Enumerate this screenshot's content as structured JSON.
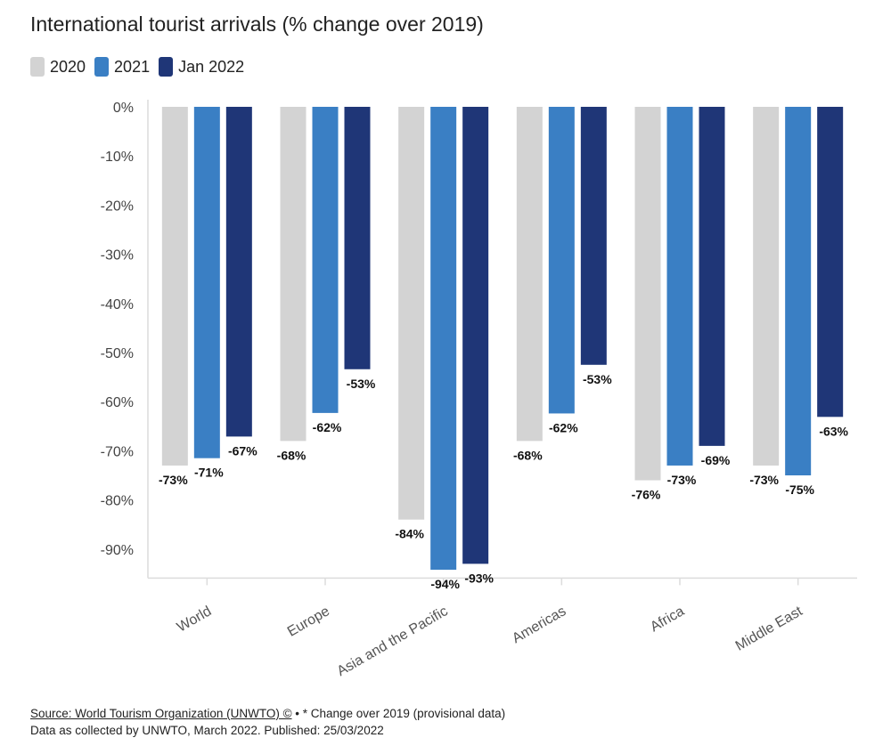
{
  "title": "International tourist arrivals (% change over 2019)",
  "legend": [
    {
      "label": "2020",
      "color": "#d3d3d3"
    },
    {
      "label": "2021",
      "color": "#3a7fc4"
    },
    {
      "label": "Jan 2022",
      "color": "#1f3677"
    }
  ],
  "chart_data": {
    "type": "bar",
    "categories": [
      "World",
      "Europe",
      "Asia and the Pacific",
      "Americas",
      "Africa",
      "Middle East"
    ],
    "series": [
      {
        "name": "2020",
        "values": [
          -73,
          -68,
          -84,
          -68,
          -76,
          -73
        ],
        "labels": [
          "-73%",
          "-68%",
          "-84%",
          "-68%",
          "-76%",
          "-73%"
        ]
      },
      {
        "name": "2021",
        "values": [
          -71.5,
          -62.3,
          -94.2,
          -62.4,
          -73,
          -75
        ],
        "labels": [
          "-71%",
          "-62%",
          "-94%",
          "-62%",
          "-73%",
          "-75%"
        ]
      },
      {
        "name": "Jan 2022",
        "values": [
          -67.1,
          -53.4,
          -93,
          -52.5,
          -69,
          -63.1
        ],
        "labels": [
          "-67%",
          "-53%",
          "-93%",
          "-53%",
          "-69%",
          "-63%"
        ]
      }
    ],
    "yticks": [
      0,
      -10,
      -20,
      -30,
      -40,
      -50,
      -60,
      -70,
      -80,
      -90
    ],
    "ytick_labels": [
      "0%",
      "-10%",
      "-20%",
      "-30%",
      "-40%",
      "-50%",
      "-60%",
      "-70%",
      "-80%",
      "-90%"
    ],
    "ylim": [
      -95,
      0
    ],
    "grid": false,
    "legend_position": "top-left"
  },
  "footer": {
    "source": "Source: World Tourism Organization (UNWTO) ©",
    "note": " • * Change over 2019 (provisional data)",
    "line2": "Data as collected by UNWTO, March 2022. Published: 25/03/2022"
  }
}
